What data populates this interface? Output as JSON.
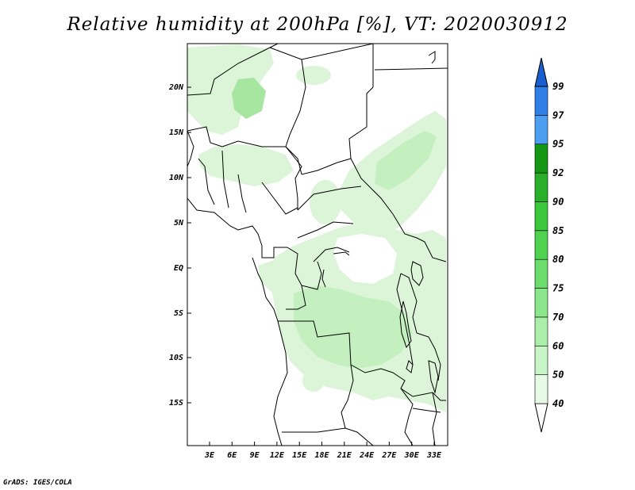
{
  "title": "Relative humidity at 200hPa [%], VT: 2020030912",
  "footer": "GrADS: IGES/COLA",
  "axes": {
    "lat_ticks": [
      "20N",
      "15N",
      "10N",
      "5N",
      "EQ",
      "5S",
      "10S",
      "15S"
    ],
    "lon_ticks": [
      "3E",
      "6E",
      "9E",
      "12E",
      "15E",
      "18E",
      "21E",
      "24E",
      "27E",
      "30E",
      "33E"
    ]
  },
  "colorbar": {
    "levels": [
      "40",
      "50",
      "60",
      "70",
      "75",
      "80",
      "85",
      "90",
      "92",
      "95",
      "97",
      "99"
    ],
    "colors": [
      "#e6fae6",
      "#c8f5c8",
      "#aaeeaa",
      "#8ce68c",
      "#6cdc6c",
      "#50d250",
      "#3cc83c",
      "#2aaf2a",
      "#159615",
      "#4d9df0",
      "#2f7fe6",
      "#1a5fd0"
    ]
  },
  "map": {
    "land": "#ffffff",
    "border_color": "#000000",
    "shade_light": "#dcf5d8",
    "shade_mid": "#c4efbf",
    "shade_dark": "#a6e6a0"
  }
}
